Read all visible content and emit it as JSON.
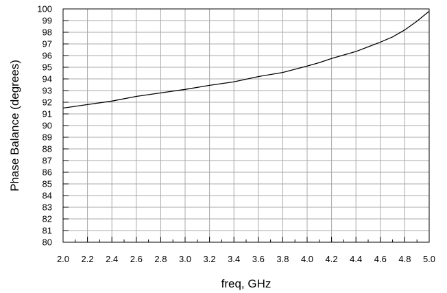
{
  "chart_data": {
    "type": "line",
    "title": "",
    "xlabel": "freq, GHz",
    "ylabel": "Phase Balance (degrees)",
    "xlim": [
      2.0,
      5.0
    ],
    "ylim": [
      80,
      100
    ],
    "x_ticks": [
      "2.0",
      "2.2",
      "2.4",
      "2.6",
      "2.8",
      "3.0",
      "3.2",
      "3.4",
      "3.6",
      "3.8",
      "4.0",
      "4.2",
      "4.4",
      "4.6",
      "4.8",
      "5.0"
    ],
    "y_ticks": [
      "80",
      "81",
      "82",
      "83",
      "84",
      "85",
      "86",
      "87",
      "88",
      "89",
      "90",
      "91",
      "92",
      "93",
      "94",
      "95",
      "96",
      "97",
      "98",
      "99",
      "100"
    ],
    "grid": true,
    "legend": "none",
    "series": [
      {
        "x": [
          2.0,
          2.2,
          2.4,
          2.6,
          2.8,
          3.0,
          3.2,
          3.4,
          3.6,
          3.8,
          4.0,
          4.1,
          4.2,
          4.3,
          4.4,
          4.5,
          4.6,
          4.7,
          4.8,
          4.9,
          5.0
        ],
        "values": [
          91.5,
          91.8,
          92.1,
          92.5,
          92.8,
          93.1,
          93.45,
          93.75,
          94.2,
          94.55,
          95.1,
          95.4,
          95.75,
          96.05,
          96.35,
          96.75,
          97.15,
          97.6,
          98.2,
          98.95,
          99.8
        ]
      }
    ]
  }
}
